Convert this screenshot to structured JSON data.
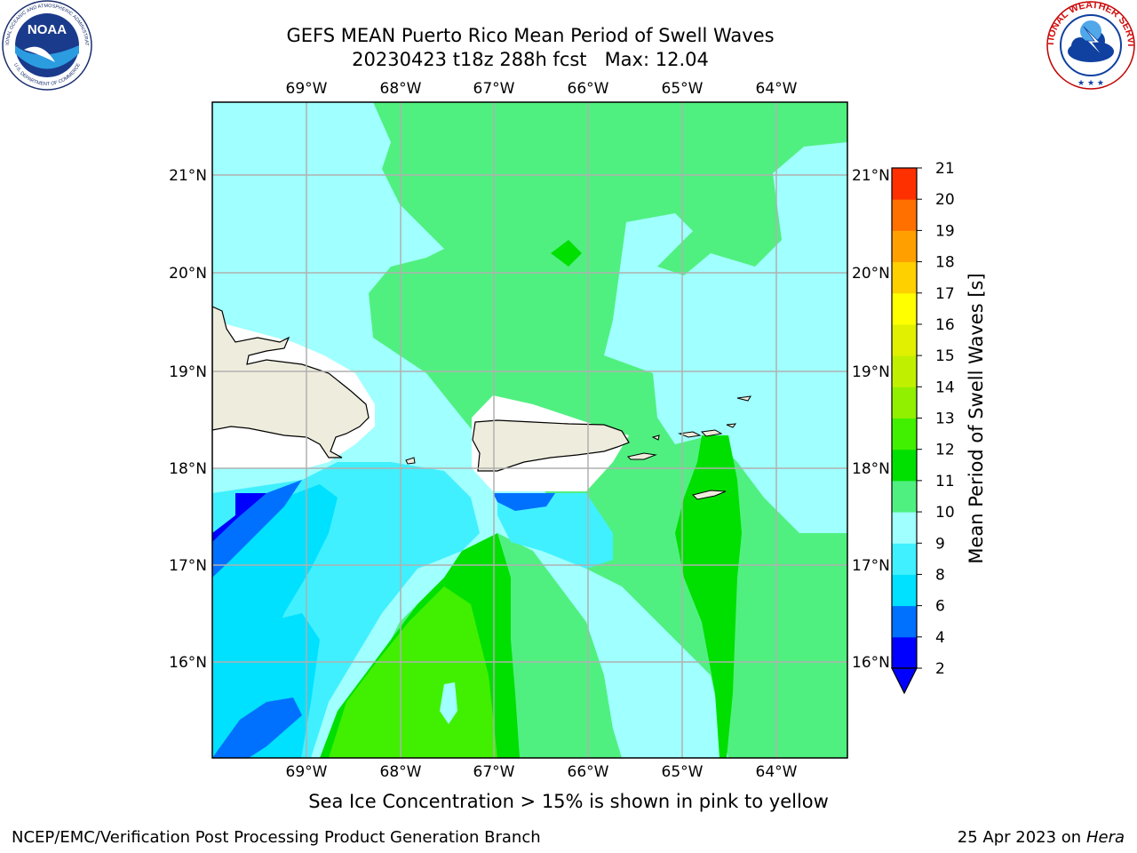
{
  "header": {
    "title_line1": "GEFS MEAN Puerto Rico Mean Period of Swell Waves",
    "title_line2": "20230423 t18z 288h fcst   Max: 12.04"
  },
  "logos": {
    "left": "noaa-logo",
    "right": "nws-logo",
    "noaa_text": "NOAA",
    "noaa_ring_text": "NATIONAL OCEANIC AND ATMOSPHERIC ADMINISTRATION",
    "noaa_ring_bottom": "U.S. DEPARTMENT OF COMMERCE",
    "nws_ring_text": "NATIONAL WEATHER SERVICE"
  },
  "map": {
    "lon_ticks": [
      "69°W",
      "68°W",
      "67°W",
      "66°W",
      "65°W",
      "64°W"
    ],
    "lat_ticks": [
      "21°N",
      "20°N",
      "19°N",
      "18°N",
      "17°N",
      "16°N"
    ],
    "land_color": "#eeecdc",
    "grid_color": "#b0b0b0"
  },
  "colorbar": {
    "label": "Mean Period of Swell Waves [s]",
    "levels": [
      "2",
      "4",
      "6",
      "8",
      "9",
      "10",
      "11",
      "12",
      "13",
      "14",
      "15",
      "16",
      "17",
      "18",
      "19",
      "20",
      "21"
    ],
    "colors": [
      "#0000ff",
      "#0070ff",
      "#00e0ff",
      "#40f0ff",
      "#a0ffff",
      "#50f080",
      "#00e000",
      "#40f000",
      "#90f000",
      "#c0f000",
      "#e0f000",
      "#ffff00",
      "#ffd000",
      "#ffa000",
      "#ff7000",
      "#ff3000",
      "#ff0000"
    ],
    "under_color": "#0000ff"
  },
  "footer": {
    "note": "Sea Ice Concentration > 15% is shown in pink to yellow",
    "left": "NCEP/EMC/Verification Post Processing Product Generation Branch",
    "right_date": "25 Apr 2023 on",
    "right_host": "Hera"
  }
}
